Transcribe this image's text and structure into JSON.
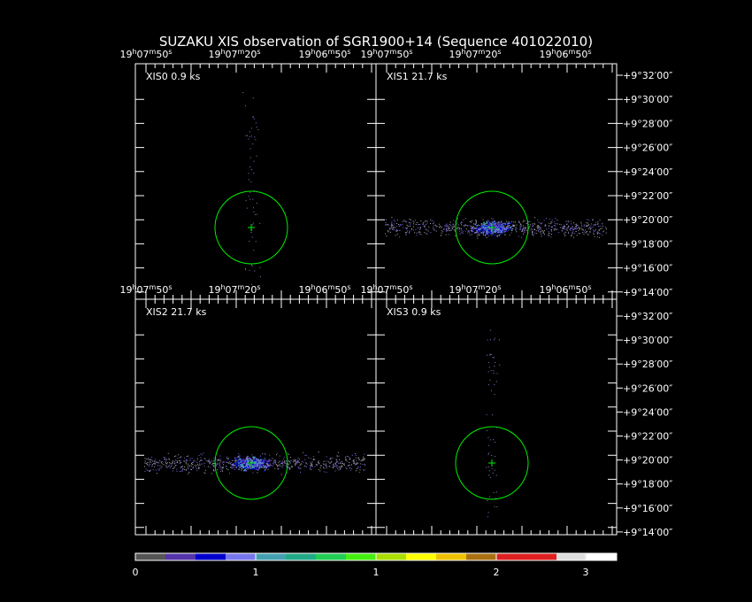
{
  "title": "SUZAKU XIS observation of SGR1900+14  (Sequence 401022010)",
  "panels": [
    {
      "label": "XIS0 0.9 ks",
      "ra_labels": [
        [
          "19",
          "h",
          "07",
          "m",
          "50",
          "s"
        ],
        [
          "19",
          "h",
          "07",
          "m",
          "20",
          "s"
        ],
        [
          "19",
          "h",
          "06",
          "m",
          "50",
          "s"
        ]
      ]
    },
    {
      "label": "XIS1 21.7 ks",
      "ra_labels": [
        [
          "19",
          "h",
          "07",
          "m",
          "50",
          "s"
        ],
        [
          "19",
          "h",
          "07",
          "m",
          "20",
          "s"
        ],
        [
          "19",
          "h",
          "06",
          "m",
          "50",
          "s"
        ]
      ]
    },
    {
      "label": "XIS2 21.7 ks",
      "ra_labels": [
        [
          "19",
          "h",
          "07",
          "m",
          "50",
          "s"
        ],
        [
          "19",
          "h",
          "07",
          "m",
          "20",
          "s"
        ],
        [
          "19",
          "h",
          "06",
          "m",
          "50",
          "s"
        ]
      ]
    },
    {
      "label": "XIS3 0.9 ks",
      "ra_labels": [
        [
          "19",
          "h",
          "07",
          "m",
          "50",
          "s"
        ],
        [
          "19",
          "h",
          "07",
          "m",
          "20",
          "s"
        ],
        [
          "19",
          "h",
          "06",
          "m",
          "50",
          "s"
        ]
      ]
    }
  ],
  "dec_labels_top": [
    "+9°32′00″",
    "+9°30′00″",
    "+9°28′00″",
    "+9°26′00″",
    "+9°24′00″",
    "+9°22′00″",
    "+9°20′00″",
    "+9°18′00″",
    "+9°16′00″",
    "+9°14′00″"
  ],
  "dec_labels_bottom": [
    "+9°32′00″",
    "+9°30′00″",
    "+9°28′00″",
    "+9°26′00″",
    "+9°24′00″",
    "+9°22′00″",
    "+9°20′00″",
    "+9°18′00″",
    "+9°16′00″",
    "+9°14′00″"
  ],
  "colorbar": {
    "colors": [
      "#555555",
      "#5533aa",
      "#0000cc",
      "#7777ee",
      "#44a0b0",
      "#22aa88",
      "#22cc55",
      "#44ee11",
      "#aadd00",
      "#ffff00",
      "#eec000",
      "#aa7010",
      "#dd2020",
      "#e02020",
      "#dddddd",
      "#ffffff"
    ],
    "labels": [
      "0",
      "1",
      "1",
      "2",
      "3"
    ]
  }
}
